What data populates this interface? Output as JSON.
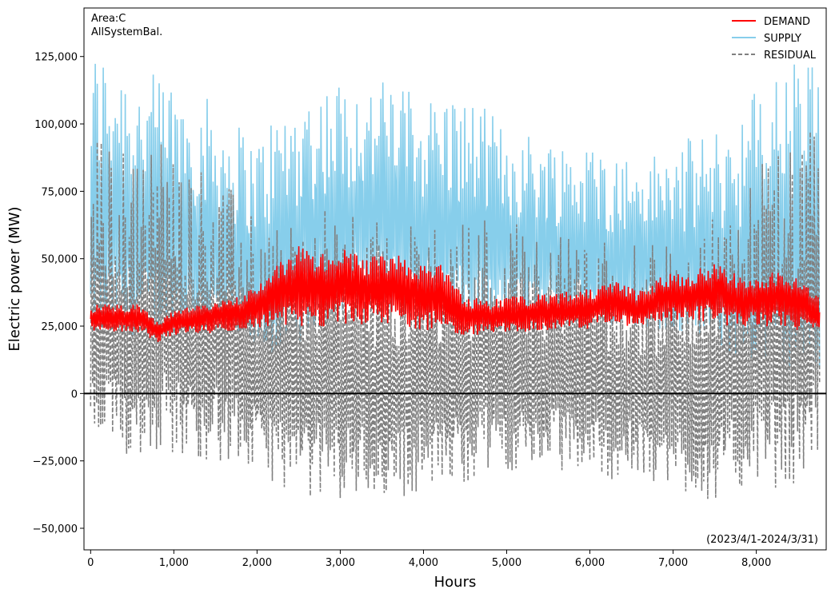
{
  "chart_data": {
    "type": "line",
    "xlabel": "Hours",
    "ylabel": "Electric power (MW)",
    "xlim": [
      -80,
      8840
    ],
    "ylim": [
      -58000,
      143000
    ],
    "x_ticks": [
      0,
      1000,
      2000,
      3000,
      4000,
      5000,
      6000,
      7000,
      8000
    ],
    "x_tick_labels": [
      "0",
      "1,000",
      "2,000",
      "3,000",
      "4,000",
      "5,000",
      "6,000",
      "7,000",
      "8,000"
    ],
    "y_ticks": [
      -50000,
      -25000,
      0,
      25000,
      50000,
      75000,
      100000,
      125000
    ],
    "y_tick_labels": [
      "−50,000",
      "−25,000",
      "0",
      "25,000",
      "50,000",
      "75,000",
      "100,000",
      "125,000"
    ],
    "grid": false,
    "legend_position": "top-right",
    "annotations": {
      "area": "Area:C",
      "mode": "AllSystemBal.",
      "period": "(2023/4/1-2024/3/31)"
    },
    "series": [
      {
        "name": "DEMAND",
        "color": "#ff0000",
        "style": "solid",
        "x": [
          0,
          300,
          600,
          800,
          1000,
          1500,
          1800,
          2000,
          2200,
          2500,
          2800,
          3000,
          3300,
          3600,
          3900,
          4200,
          4500,
          4800,
          5000,
          5500,
          6000,
          6300,
          6600,
          6900,
          7200,
          7500,
          7800,
          8000,
          8300,
          8600,
          8760
        ],
        "low": [
          22000,
          23000,
          22500,
          19000,
          21500,
          22500,
          23000,
          24000,
          24500,
          25000,
          24500,
          26000,
          25500,
          25000,
          24000,
          23000,
          21500,
          22000,
          22500,
          23000,
          24000,
          26000,
          24000,
          26500,
          27000,
          26000,
          24500,
          25000,
          24000,
          23000,
          22000
        ],
        "high": [
          33000,
          33500,
          33000,
          27000,
          31000,
          34000,
          37000,
          40000,
          47000,
          55000,
          52000,
          55000,
          50000,
          53000,
          50000,
          48000,
          36000,
          35000,
          36000,
          37000,
          39000,
          42000,
          38000,
          45000,
          44000,
          50000,
          43000,
          44000,
          47000,
          42000,
          35000
        ]
      },
      {
        "name": "SUPPLY",
        "color": "#87ceeb",
        "style": "solid",
        "x": [
          0,
          300,
          600,
          800,
          1000,
          1500,
          1800,
          2000,
          2200,
          2500,
          2800,
          3000,
          3300,
          3600,
          3900,
          4200,
          4500,
          4800,
          5000,
          5500,
          6000,
          6300,
          6600,
          6900,
          7200,
          7500,
          7800,
          8000,
          8300,
          8600,
          8760
        ],
        "low": [
          12000,
          14000,
          16000,
          18000,
          17000,
          15000,
          12000,
          10000,
          9000,
          14000,
          20000,
          26000,
          28000,
          26000,
          24000,
          22000,
          20000,
          19000,
          20000,
          21000,
          22000,
          22000,
          21000,
          20000,
          17000,
          12000,
          8000,
          5000,
          3000,
          2000,
          1000
        ],
        "high": [
          128000,
          130000,
          120000,
          118000,
          118000,
          108000,
          100000,
          95000,
          105000,
          112000,
          116000,
          117000,
          114000,
          118000,
          112000,
          113000,
          110000,
          105000,
          100000,
          96000,
          93000,
          90000,
          88000,
          90000,
          95000,
          98000,
          105000,
          115000,
          122000,
          126000,
          130000
        ]
      },
      {
        "name": "RESIDUAL",
        "color": "#808080",
        "style": "dashed",
        "x": [
          0,
          300,
          600,
          800,
          1000,
          1500,
          1800,
          2000,
          2200,
          2500,
          2800,
          3000,
          3300,
          3600,
          3900,
          4200,
          4500,
          4800,
          5000,
          5500,
          6000,
          6300,
          6600,
          6900,
          7200,
          7500,
          7800,
          8000,
          8300,
          8600,
          8760
        ],
        "low": [
          -30000,
          -31000,
          -29000,
          -27000,
          -29000,
          -31000,
          -33000,
          -35000,
          -38000,
          -44000,
          -44000,
          -45000,
          -43000,
          -46000,
          -42000,
          -40000,
          -38000,
          -35000,
          -34000,
          -33000,
          -35000,
          -37000,
          -38000,
          -40000,
          -42000,
          -47000,
          -42000,
          -40000,
          -42000,
          -38000,
          -30000
        ],
        "high": [
          96000,
          94000,
          85000,
          98000,
          92000,
          82000,
          72000,
          65000,
          68000,
          65000,
          68000,
          70000,
          63000,
          66000,
          63000,
          62000,
          65000,
          68000,
          66000,
          62000,
          60000,
          55000,
          55000,
          56000,
          60000,
          66000,
          72000,
          84000,
          90000,
          95000,
          102000
        ]
      }
    ],
    "zero_line": 0
  }
}
